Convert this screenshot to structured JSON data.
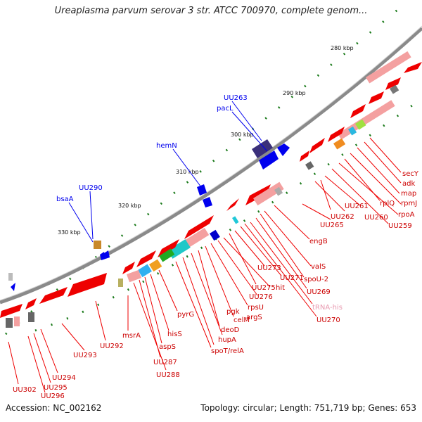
{
  "title": "Ureaplasma parvum serovar 3 str. ATCC 700970, complete genom...",
  "footer": {
    "accession": "Accession: NC_002162",
    "topology": "Topology: circular; Length: 751,719 bp; Genes: 653"
  },
  "ticks": [
    "280 kbp",
    "290 kbp",
    "300 kbp",
    "310 kbp",
    "320 kbp",
    "330 kbp"
  ],
  "labels_outer": {
    "uu263": "UU263",
    "pacL": "pacL",
    "hemN": "hemN",
    "uu290": "UU290",
    "bsaA": "bsaA"
  },
  "labels_inner": {
    "secY": "secY",
    "adk": "adk",
    "map": "map",
    "rpmJ": "rpmJ",
    "rplQ": "rplQ",
    "rpoA": "rpoA",
    "uu259": "UU259",
    "uu260": "UU260",
    "uu261": "UU261",
    "uu262": "UU262",
    "uu265": "UU265",
    "engB": "engB",
    "valS": "valS",
    "spoU2": "spoU-2",
    "uu269": "UU269",
    "trnaHis": "tRNA-his",
    "uu270": "UU270",
    "uu271": "UU271",
    "uu273": "UU273",
    "uu275": "UU275",
    "hit": "hit",
    "uu276": "UU276",
    "rpsU": "rpsU",
    "argS": "argS",
    "celM": "celM",
    "pgk": "pgk",
    "deoD": "deoD",
    "hupA": "hupA",
    "spoTrelA": "spoT/relA",
    "pyrG": "pyrG",
    "hisS": "hisS",
    "aspS": "aspS",
    "uu287": "UU287",
    "uu288": "UU288",
    "msrA": "msrA",
    "uu292": "UU292",
    "uu293": "UU293",
    "uu294": "UU294",
    "uu295": "UU295",
    "uu296": "UU296",
    "uu302": "UU302"
  },
  "colors": {
    "forward_cds": "#0000ee",
    "reverse_cds": "#ee0000",
    "reverse_pale": "#f4a0a0",
    "backbone": "#888888",
    "tick": "#1a7a1a",
    "trna": "#e89ab0"
  }
}
